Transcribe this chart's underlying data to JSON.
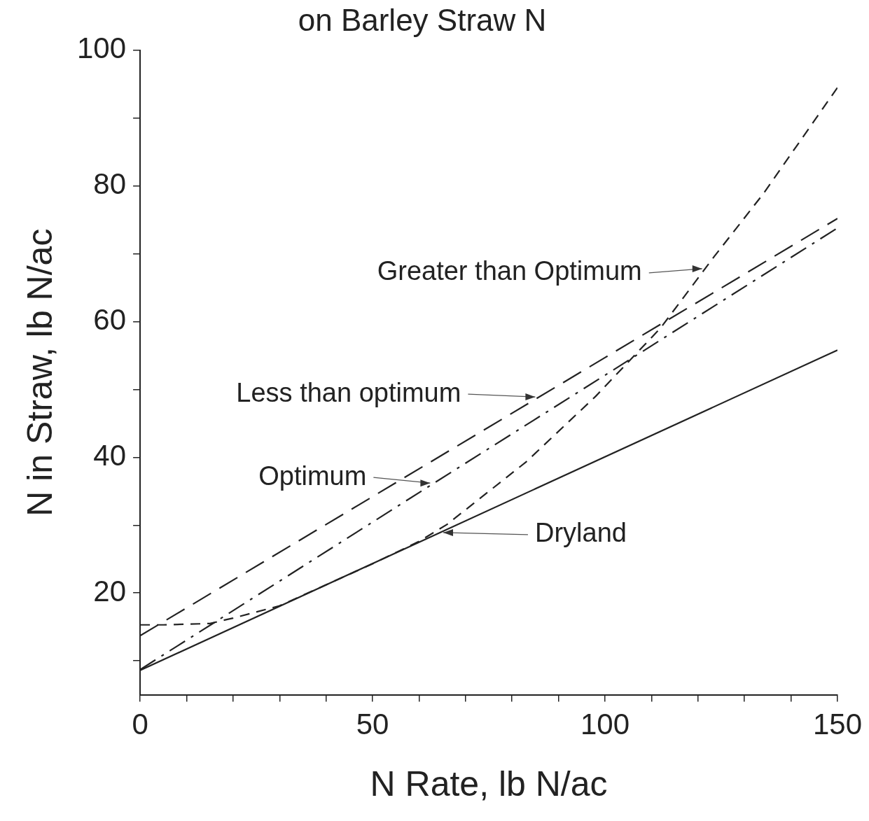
{
  "chart_data": {
    "type": "line",
    "title": "on Barley Straw N",
    "xlabel": "N Rate, lb N/ac",
    "ylabel": "N in Straw, lb N/ac",
    "xlim": [
      0,
      150
    ],
    "ylim": [
      5,
      100
    ],
    "xticks": [
      0,
      {
        "value": 10,
        "label": null
      },
      {
        "value": 20,
        "label": null
      },
      {
        "value": 30,
        "label": null
      },
      {
        "value": 40,
        "label": null
      },
      50,
      {
        "value": 60,
        "label": null
      },
      {
        "value": 70,
        "label": null
      },
      {
        "value": 80,
        "label": null
      },
      {
        "value": 90,
        "label": null
      },
      100,
      {
        "value": 110,
        "label": null
      },
      {
        "value": 120,
        "label": null
      },
      {
        "value": 130,
        "label": null
      },
      {
        "value": 140,
        "label": null
      },
      150
    ],
    "yticks": [
      {
        "value": 10,
        "label": null
      },
      20,
      {
        "value": 30,
        "label": null
      },
      40,
      {
        "value": 50,
        "label": null
      },
      60,
      {
        "value": 70,
        "label": null
      },
      80,
      {
        "value": 90,
        "label": null
      },
      100
    ],
    "grid": false,
    "legend": false,
    "marker": "none",
    "series": [
      {
        "color": "#222222",
        "line_style": "solid",
        "x": [
          0,
          150
        ],
        "values": [
          8.6,
          55.8
        ]
      },
      {
        "color": "#222222",
        "line_style": "dashed",
        "x": [
          0,
          50,
          100,
          150
        ],
        "values": [
          13.7,
          34.2,
          54.7,
          75.2
        ]
      },
      {
        "color": "#222222",
        "line_style": "dashdot",
        "x": [
          0,
          63,
          100,
          150
        ],
        "values": [
          8.7,
          36.1,
          52.1,
          73.8
        ]
      },
      {
        "color": "#222222",
        "line_style": "dotted",
        "x": [
          0,
          5,
          10,
          15,
          20,
          30,
          40,
          50,
          60,
          66,
          83,
          98,
          112,
          123.5,
          134,
          150
        ],
        "values": [
          15.3,
          15.3,
          15.4,
          15.5,
          16.3,
          18.1,
          21.2,
          24.3,
          27.6,
          30.1,
          39.3,
          49,
          59.1,
          69.6,
          78.8,
          94.5
        ]
      }
    ],
    "annotations": [
      {
        "text": "Greater than Optimum",
        "x": 121.5,
        "y": 67.8
      },
      {
        "text": "Less than optimum",
        "x": 85.6,
        "y": 48.9
      },
      {
        "text": "Optimum",
        "x": 63,
        "y": 36.2
      },
      {
        "text": "Dryland",
        "x": 64.6,
        "y": 28.9
      }
    ]
  }
}
